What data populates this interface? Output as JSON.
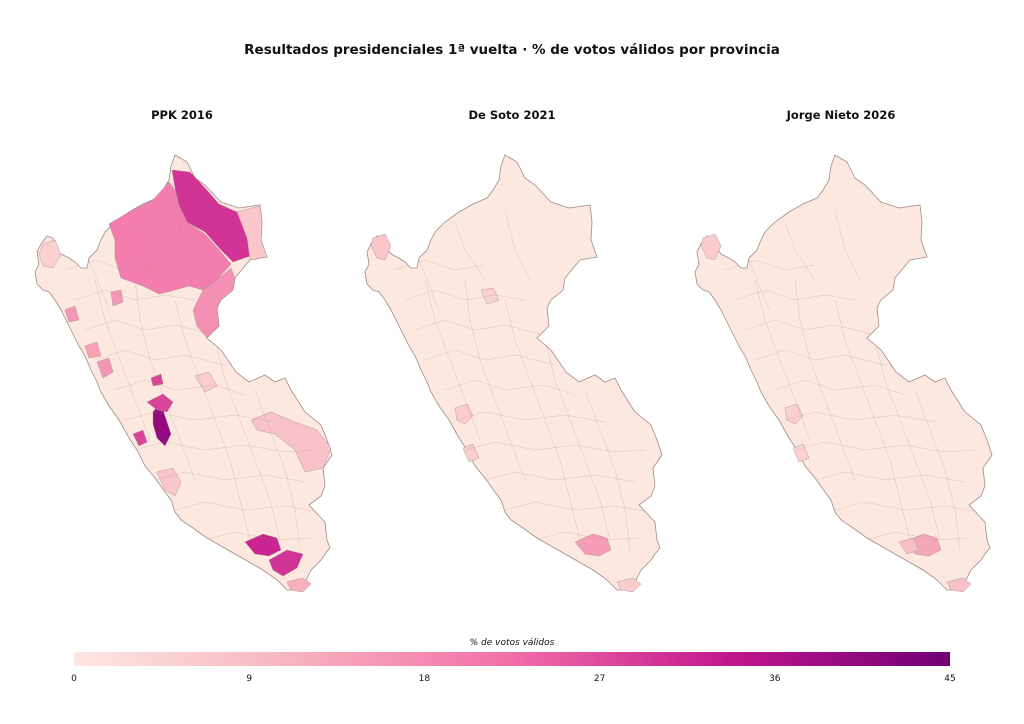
{
  "title": "Resultados presidenciales 1ª vuelta · % de votos válidos por provincia",
  "colors": {
    "scale": [
      "#fde8e0",
      "#f7b3bf",
      "#f26ea7",
      "#c1168d",
      "#6f0074"
    ],
    "base_fill": "#fde8e0",
    "border": "#a08a86"
  },
  "legend": {
    "title": "% de votos válidos",
    "min": 0,
    "max": 45,
    "ticks": [
      "0",
      "9",
      "18",
      "27",
      "36",
      "45"
    ]
  },
  "maps": [
    {
      "title": "PPK 2016",
      "regions": [
        {
          "id": "loreto-north",
          "value": 30
        },
        {
          "id": "loreto-center",
          "value": 20
        },
        {
          "id": "loreto-south",
          "value": 17
        },
        {
          "id": "loreto-east",
          "value": 7
        },
        {
          "id": "ucayali",
          "value": 8
        },
        {
          "id": "piura-coast",
          "value": 5
        },
        {
          "id": "lima-center",
          "value": 40
        },
        {
          "id": "lima-north",
          "value": 28
        },
        {
          "id": "ancash-coast",
          "value": 16
        },
        {
          "id": "trujillo",
          "value": 14
        },
        {
          "id": "ica",
          "value": 7
        },
        {
          "id": "madre-de-dios",
          "value": 6
        },
        {
          "id": "arequipa",
          "value": 32
        },
        {
          "id": "moquegua",
          "value": 30
        },
        {
          "id": "tacna",
          "value": 12
        }
      ]
    },
    {
      "title": "De Soto 2021",
      "regions": [
        {
          "id": "tumbes",
          "value": 7
        },
        {
          "id": "lima-coast",
          "value": 6
        },
        {
          "id": "arequipa",
          "value": 15
        },
        {
          "id": "tacna",
          "value": 6
        },
        {
          "id": "san-martin",
          "value": 5
        }
      ]
    },
    {
      "title": "Jorge Nieto 2026",
      "regions": [
        {
          "id": "tumbes",
          "value": 6
        },
        {
          "id": "lima-coast",
          "value": 5
        },
        {
          "id": "arequipa",
          "value": 13
        },
        {
          "id": "arequipa-south",
          "value": 9
        },
        {
          "id": "tacna",
          "value": 8
        }
      ]
    }
  ]
}
